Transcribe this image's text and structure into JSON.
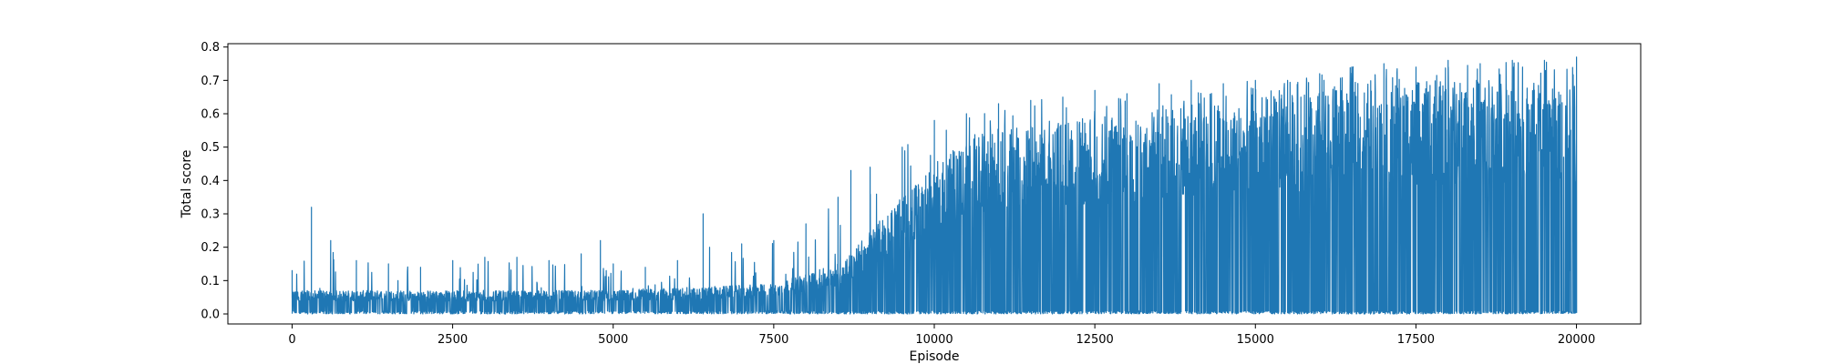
{
  "chart_data": {
    "type": "line",
    "title": "",
    "xlabel": "Episode",
    "ylabel": "Total score",
    "xlim": [
      -1000,
      21000
    ],
    "ylim": [
      -0.03,
      0.81
    ],
    "xticks": [
      0,
      2500,
      5000,
      7500,
      10000,
      12500,
      15000,
      17500,
      20000
    ],
    "xtick_labels": [
      "0",
      "2500",
      "5000",
      "7500",
      "10000",
      "12500",
      "15000",
      "17500",
      "20000"
    ],
    "yticks": [
      0.0,
      0.1,
      0.2,
      0.3,
      0.4,
      0.5,
      0.6,
      0.7,
      0.8
    ],
    "ytick_labels": [
      "0.0",
      "0.1",
      "0.2",
      "0.3",
      "0.4",
      "0.5",
      "0.6",
      "0.7",
      "0.8"
    ],
    "grid": false,
    "legend": "none",
    "series": [
      {
        "color": "#1f77b4",
        "episodes_total": 20000,
        "upper_envelope": {
          "x": [
            0,
            300,
            600,
            1000,
            1500,
            2000,
            2500,
            3000,
            3500,
            4000,
            4500,
            4800,
            5000,
            5500,
            6000,
            6400,
            6500,
            7000,
            7500,
            8000,
            8500,
            8700,
            9000,
            9500,
            10000,
            10500,
            11000,
            11500,
            12000,
            12500,
            13000,
            13500,
            14000,
            14500,
            15000,
            15500,
            16000,
            16500,
            17000,
            17500,
            18000,
            18500,
            19000,
            19500,
            20000
          ],
          "y": [
            0.13,
            0.32,
            0.22,
            0.16,
            0.15,
            0.14,
            0.16,
            0.17,
            0.17,
            0.16,
            0.18,
            0.22,
            0.15,
            0.14,
            0.16,
            0.3,
            0.2,
            0.21,
            0.22,
            0.27,
            0.35,
            0.43,
            0.44,
            0.5,
            0.58,
            0.6,
            0.63,
            0.64,
            0.65,
            0.67,
            0.66,
            0.69,
            0.7,
            0.69,
            0.7,
            0.7,
            0.72,
            0.74,
            0.75,
            0.74,
            0.76,
            0.75,
            0.76,
            0.76,
            0.77
          ]
        },
        "typical_upper": {
          "x": [
            0,
            2000,
            5000,
            7500,
            8500,
            9000,
            9500,
            10000,
            10500,
            11000,
            12000,
            13000,
            14000,
            15000,
            16000,
            17000,
            18000,
            19000,
            20000
          ],
          "y": [
            0.07,
            0.07,
            0.07,
            0.09,
            0.15,
            0.25,
            0.35,
            0.45,
            0.52,
            0.55,
            0.58,
            0.6,
            0.63,
            0.65,
            0.67,
            0.69,
            0.7,
            0.71,
            0.72
          ]
        },
        "dips": [
          {
            "x": 11800,
            "y": 0.38
          },
          {
            "x": 13100,
            "y": 0.05
          },
          {
            "x": 13150,
            "y": 0.27
          },
          {
            "x": 14100,
            "y": 0.42
          },
          {
            "x": 15250,
            "y": 0.31
          },
          {
            "x": 15300,
            "y": 0.0
          },
          {
            "x": 16450,
            "y": 0.0
          },
          {
            "x": 16500,
            "y": 0.0
          },
          {
            "x": 16550,
            "y": 0.41
          },
          {
            "x": 16700,
            "y": 0.35
          },
          {
            "x": 16900,
            "y": 0.17
          },
          {
            "x": 17150,
            "y": 0.0
          },
          {
            "x": 17200,
            "y": 0.0
          },
          {
            "x": 17800,
            "y": 0.43
          },
          {
            "x": 18300,
            "y": 0.47
          },
          {
            "x": 18400,
            "y": 0.43
          },
          {
            "x": 18500,
            "y": 0.29
          },
          {
            "x": 19300,
            "y": 0.43
          },
          {
            "x": 19700,
            "y": 0.25
          },
          {
            "x": 19800,
            "y": 0.47
          },
          {
            "x": 19900,
            "y": 0.13
          },
          {
            "x": 20000,
            "y": 0.32
          }
        ]
      }
    ]
  }
}
